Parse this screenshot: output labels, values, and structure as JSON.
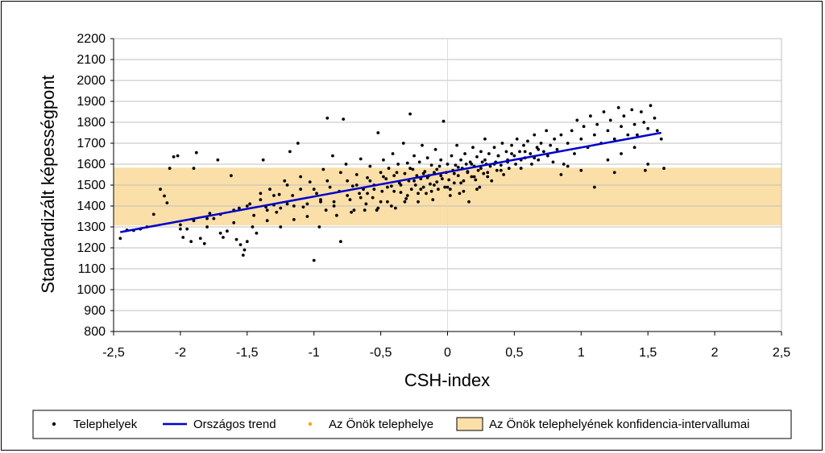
{
  "chart_data": {
    "type": "scatter",
    "xlabel": "CSH-index",
    "ylabel": "Standardizált képességpont",
    "xlim": [
      -2.5,
      2.5
    ],
    "ylim": [
      800,
      2200
    ],
    "xticks": [
      -2.5,
      -2,
      -1.5,
      -1,
      -0.5,
      0,
      0.5,
      1,
      1.5,
      2,
      2.5
    ],
    "xtick_labels": [
      "-2,5",
      "-2",
      "-1,5",
      "-1",
      "-0,5",
      "0",
      "0,5",
      "1",
      "1,5",
      "2",
      "2,5"
    ],
    "yticks": [
      800,
      900,
      1000,
      1100,
      1200,
      1300,
      1400,
      1500,
      1600,
      1700,
      1800,
      1900,
      2000,
      2100,
      2200
    ],
    "grid": "horizontal",
    "legend_position": "bottom",
    "confidence_band": {
      "name": "Az Önök telephelyének konfidencia-intervallumai",
      "ymin": 1307,
      "ymax": 1583,
      "color": "#fbdfa9"
    },
    "own_site_marker": {
      "name": "Az Önök telephelye",
      "x": 0,
      "color": "#ffa500"
    },
    "trend": {
      "name": "Országos trend",
      "x": [
        -2.45,
        1.6
      ],
      "y": [
        1275,
        1750
      ],
      "color": "#0000cc"
    },
    "points_series": {
      "name": "Telephelyek",
      "color": "#000000",
      "points": [
        [
          -2.45,
          1245
        ],
        [
          -2.4,
          1285
        ],
        [
          -2.35,
          1283
        ],
        [
          -2.3,
          1290
        ],
        [
          -2.25,
          1300
        ],
        [
          -2.2,
          1360
        ],
        [
          -2.15,
          1480
        ],
        [
          -2.12,
          1448
        ],
        [
          -2.1,
          1415
        ],
        [
          -2.08,
          1580
        ],
        [
          -2.05,
          1635
        ],
        [
          -2.02,
          1640
        ],
        [
          -2.0,
          1290
        ],
        [
          -1.98,
          1250
        ],
        [
          -1.95,
          1290
        ],
        [
          -1.92,
          1230
        ],
        [
          -1.9,
          1580
        ],
        [
          -1.88,
          1655
        ],
        [
          -1.85,
          1245
        ],
        [
          -1.82,
          1220
        ],
        [
          -1.8,
          1300
        ],
        [
          -1.78,
          1365
        ],
        [
          -1.75,
          1340
        ],
        [
          -1.72,
          1620
        ],
        [
          -1.7,
          1270
        ],
        [
          -1.68,
          1250
        ],
        [
          -1.65,
          1280
        ],
        [
          -1.62,
          1545
        ],
        [
          -1.6,
          1320
        ],
        [
          -1.58,
          1240
        ],
        [
          -1.56,
          1390
        ],
        [
          -1.55,
          1215
        ],
        [
          -1.53,
          1165
        ],
        [
          -1.52,
          1190
        ],
        [
          -1.5,
          1230
        ],
        [
          -1.48,
          1410
        ],
        [
          -1.46,
          1300
        ],
        [
          -1.45,
          1355
        ],
        [
          -1.43,
          1270
        ],
        [
          -1.4,
          1460
        ],
        [
          -1.38,
          1620
        ],
        [
          -1.36,
          1395
        ],
        [
          -1.35,
          1330
        ],
        [
          -1.33,
          1480
        ],
        [
          -1.3,
          1405
        ],
        [
          -1.28,
          1370
        ],
        [
          -1.26,
          1455
        ],
        [
          -1.25,
          1300
        ],
        [
          -1.22,
          1520
        ],
        [
          -1.2,
          1410
        ],
        [
          -1.18,
          1660
        ],
        [
          -1.16,
          1450
        ],
        [
          -1.15,
          1335
        ],
        [
          -1.12,
          1700
        ],
        [
          -1.1,
          1480
        ],
        [
          -1.08,
          1395
        ],
        [
          -1.05,
          1350
        ],
        [
          -1.03,
          1515
        ],
        [
          -1.0,
          1140
        ],
        [
          -0.98,
          1460
        ],
        [
          -0.96,
          1300
        ],
        [
          -0.95,
          1420
        ],
        [
          -0.93,
          1575
        ],
        [
          -0.91,
          1380
        ],
        [
          -0.9,
          1820
        ],
        [
          -0.88,
          1490
        ],
        [
          -0.86,
          1640
        ],
        [
          -0.85,
          1420
        ],
        [
          -0.83,
          1355
        ],
        [
          -0.81,
          1470
        ],
        [
          -0.8,
          1230
        ],
        [
          -0.78,
          1815
        ],
        [
          -0.76,
          1600
        ],
        [
          -0.75,
          1520
        ],
        [
          -0.73,
          1430
        ],
        [
          -0.71,
          1495
        ],
        [
          -0.7,
          1380
        ],
        [
          -0.68,
          1550
        ],
        [
          -0.66,
          1460
        ],
        [
          -0.65,
          1625
        ],
        [
          -0.63,
          1480
        ],
        [
          -0.61,
          1410
        ],
        [
          -0.6,
          1535
        ],
        [
          -0.58,
          1590
        ],
        [
          -0.56,
          1440
        ],
        [
          -0.55,
          1500
        ],
        [
          -0.53,
          1380
        ],
        [
          -0.52,
          1750
        ],
        [
          -0.5,
          1560
        ],
        [
          -0.49,
          1470
        ],
        [
          -0.48,
          1620
        ],
        [
          -0.46,
          1530
        ],
        [
          -0.45,
          1420
        ],
        [
          -0.44,
          1580
        ],
        [
          -0.42,
          1495
        ],
        [
          -0.41,
          1650
        ],
        [
          -0.4,
          1545
        ],
        [
          -0.39,
          1390
        ],
        [
          -0.37,
          1600
        ],
        [
          -0.36,
          1510
        ],
        [
          -0.35,
          1465
        ],
        [
          -0.33,
          1700
        ],
        [
          -0.32,
          1555
        ],
        [
          -0.31,
          1435
        ],
        [
          -0.3,
          1605
        ],
        [
          -0.29,
          1520
        ],
        [
          -0.28,
          1840
        ],
        [
          -0.27,
          1480
        ],
        [
          -0.26,
          1575
        ],
        [
          -0.25,
          1640
        ],
        [
          -0.24,
          1500
        ],
        [
          -0.23,
          1545
        ],
        [
          -0.22,
          1420
        ],
        [
          -0.21,
          1610
        ],
        [
          -0.2,
          1530
        ],
        [
          -0.19,
          1690
        ],
        [
          -0.18,
          1490
        ],
        [
          -0.17,
          1565
        ],
        [
          -0.16,
          1460
        ],
        [
          -0.15,
          1630
        ],
        [
          -0.14,
          1545
        ],
        [
          -0.13,
          1505
        ],
        [
          -0.12,
          1595
        ],
        [
          -0.11,
          1430
        ],
        [
          -0.1,
          1560
        ],
        [
          -0.09,
          1670
        ],
        [
          -0.08,
          1515
        ],
        [
          -0.07,
          1480
        ],
        [
          -0.06,
          1590
        ],
        [
          -0.05,
          1620
        ],
        [
          -0.04,
          1530
        ],
        [
          -0.03,
          1805
        ],
        [
          -0.02,
          1490
        ],
        [
          -0.01,
          1560
        ],
        [
          0.0,
          1600
        ],
        [
          0.01,
          1525
        ],
        [
          0.02,
          1480
        ],
        [
          0.03,
          1640
        ],
        [
          0.04,
          1570
        ],
        [
          0.05,
          1510
        ],
        [
          0.06,
          1595
        ],
        [
          0.07,
          1690
        ],
        [
          0.08,
          1545
        ],
        [
          0.09,
          1460
        ],
        [
          0.1,
          1620
        ],
        [
          0.11,
          1580
        ],
        [
          0.12,
          1520
        ],
        [
          0.13,
          1650
        ],
        [
          0.14,
          1600
        ],
        [
          0.15,
          1560
        ],
        [
          0.16,
          1420
        ],
        [
          0.17,
          1610
        ],
        [
          0.18,
          1540
        ],
        [
          0.19,
          1680
        ],
        [
          0.2,
          1590
        ],
        [
          0.21,
          1525
        ],
        [
          0.22,
          1635
        ],
        [
          0.23,
          1570
        ],
        [
          0.24,
          1490
        ],
        [
          0.25,
          1660
        ],
        [
          0.26,
          1610
        ],
        [
          0.27,
          1555
        ],
        [
          0.28,
          1720
        ],
        [
          0.29,
          1600
        ],
        [
          0.3,
          1540
        ],
        [
          0.31,
          1650
        ],
        [
          0.32,
          1590
        ],
        [
          0.33,
          1520
        ],
        [
          0.35,
          1680
        ],
        [
          0.36,
          1610
        ],
        [
          0.37,
          1570
        ],
        [
          0.38,
          1640
        ],
        [
          0.4,
          1595
        ],
        [
          0.41,
          1700
        ],
        [
          0.42,
          1550
        ],
        [
          0.44,
          1660
        ],
        [
          0.45,
          1620
        ],
        [
          0.46,
          1580
        ],
        [
          0.48,
          1690
        ],
        [
          0.5,
          1640
        ],
        [
          0.51,
          1600
        ],
        [
          0.52,
          1720
        ],
        [
          0.54,
          1660
        ],
        [
          0.55,
          1580
        ],
        [
          0.57,
          1690
        ],
        [
          0.58,
          1630
        ],
        [
          0.6,
          1710
        ],
        [
          0.62,
          1650
        ],
        [
          0.63,
          1600
        ],
        [
          0.65,
          1740
        ],
        [
          0.67,
          1680
        ],
        [
          0.68,
          1620
        ],
        [
          0.7,
          1700
        ],
        [
          0.72,
          1660
        ],
        [
          0.74,
          1760
        ],
        [
          0.75,
          1640
        ],
        [
          0.77,
          1690
        ],
        [
          0.79,
          1610
        ],
        [
          0.8,
          1720
        ],
        [
          0.82,
          1670
        ],
        [
          0.85,
          1740
        ],
        [
          0.87,
          1600
        ],
        [
          0.9,
          1700
        ],
        [
          0.93,
          1760
        ],
        [
          0.95,
          1650
        ],
        [
          0.97,
          1810
        ],
        [
          1.0,
          1720
        ],
        [
          1.02,
          1780
        ],
        [
          1.05,
          1680
        ],
        [
          1.07,
          1830
        ],
        [
          1.1,
          1740
        ],
        [
          1.12,
          1790
        ],
        [
          1.15,
          1700
        ],
        [
          1.17,
          1850
        ],
        [
          1.2,
          1760
        ],
        [
          1.22,
          1810
        ],
        [
          1.25,
          1720
        ],
        [
          1.28,
          1870
        ],
        [
          1.3,
          1780
        ],
        [
          1.32,
          1830
        ],
        [
          1.35,
          1740
        ],
        [
          1.38,
          1860
        ],
        [
          1.4,
          1790
        ],
        [
          1.42,
          1740
        ],
        [
          1.45,
          1850
        ],
        [
          1.47,
          1800
        ],
        [
          1.5,
          1770
        ],
        [
          1.52,
          1880
        ],
        [
          1.55,
          1820
        ],
        [
          1.57,
          1760
        ],
        [
          1.6,
          1720
        ],
        [
          1.62,
          1580
        ],
        [
          -0.2,
          1480
        ],
        [
          -0.1,
          1500
        ],
        [
          0.0,
          1490
        ],
        [
          0.1,
          1510
        ],
        [
          -0.3,
          1450
        ],
        [
          -0.4,
          1470
        ],
        [
          -0.5,
          1420
        ],
        [
          -0.6,
          1460
        ],
        [
          0.2,
          1540
        ],
        [
          0.3,
          1560
        ],
        [
          0.4,
          1570
        ],
        [
          -0.15,
          1535
        ],
        [
          -0.05,
          1545
        ],
        [
          0.05,
          1555
        ],
        [
          0.15,
          1565
        ],
        [
          -0.35,
          1500
        ],
        [
          -0.45,
          1490
        ],
        [
          -0.55,
          1480
        ],
        [
          -0.65,
          1440
        ],
        [
          -0.75,
          1450
        ],
        [
          -0.85,
          1400
        ],
        [
          -0.95,
          1430
        ],
        [
          -1.05,
          1410
        ],
        [
          -1.15,
          1400
        ],
        [
          -1.25,
          1390
        ],
        [
          -1.35,
          1380
        ],
        [
          0.25,
          1580
        ],
        [
          0.35,
          1600
        ],
        [
          0.45,
          1610
        ],
        [
          0.55,
          1620
        ],
        [
          0.65,
          1630
        ],
        [
          -0.25,
          1520
        ],
        [
          -0.18,
          1555
        ],
        [
          -0.08,
          1575
        ],
        [
          0.08,
          1585
        ],
        [
          0.18,
          1600
        ],
        [
          -0.28,
          1580
        ],
        [
          -0.38,
          1560
        ],
        [
          -0.48,
          1540
        ],
        [
          -0.58,
          1520
        ],
        [
          -0.68,
          1500
        ],
        [
          0.28,
          1620
        ],
        [
          0.38,
          1640
        ],
        [
          0.48,
          1650
        ],
        [
          0.58,
          1660
        ],
        [
          0.68,
          1670
        ],
        [
          -0.22,
          1460
        ],
        [
          -0.12,
          1470
        ],
        [
          0.02,
          1450
        ],
        [
          0.12,
          1470
        ],
        [
          0.22,
          1480
        ],
        [
          -0.32,
          1420
        ],
        [
          -0.42,
          1400
        ],
        [
          -0.52,
          1390
        ],
        [
          -0.62,
          1380
        ],
        [
          -0.72,
          1370
        ],
        [
          1.1,
          1490
        ],
        [
          1.0,
          1570
        ],
        [
          0.9,
          1590
        ],
        [
          0.85,
          1550
        ],
        [
          1.2,
          1620
        ],
        [
          1.3,
          1650
        ],
        [
          1.4,
          1680
        ],
        [
          1.5,
          1600
        ],
        [
          1.48,
          1570
        ],
        [
          1.25,
          1560
        ],
        [
          -0.8,
          1560
        ],
        [
          -0.9,
          1520
        ],
        [
          -1.0,
          1480
        ],
        [
          -1.1,
          1540
        ],
        [
          -1.2,
          1500
        ],
        [
          -1.3,
          1450
        ],
        [
          -1.4,
          1430
        ],
        [
          -1.5,
          1400
        ],
        [
          -1.6,
          1380
        ],
        [
          -1.7,
          1360
        ],
        [
          -1.8,
          1340
        ],
        [
          -1.9,
          1330
        ],
        [
          -2.0,
          1310
        ]
      ]
    }
  },
  "legend": {
    "items": [
      {
        "label": "Telephelyek"
      },
      {
        "label": "Országos trend"
      },
      {
        "label": "Az Önök telephelye"
      },
      {
        "label": "Az Önök telephelyének konfidencia-intervallumai"
      }
    ]
  }
}
